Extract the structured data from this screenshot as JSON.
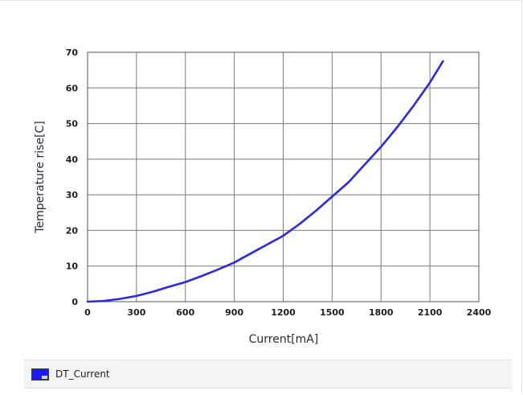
{
  "chart_data": {
    "type": "line",
    "xlabel": "Current[mA]",
    "ylabel": "Temperature rise[C]",
    "xlim": [
      0,
      2400
    ],
    "ylim": [
      0,
      70
    ],
    "x_ticks": [
      0,
      300,
      600,
      900,
      1200,
      1500,
      1800,
      2100,
      2400
    ],
    "y_ticks": [
      0,
      10,
      20,
      30,
      40,
      50,
      60,
      70
    ],
    "grid": true,
    "legend_position": "bottom",
    "series": [
      {
        "name": "DT_Current",
        "color": "#2a2ae6",
        "x": [
          0,
          100,
          200,
          300,
          400,
          500,
          600,
          700,
          800,
          900,
          1000,
          1100,
          1200,
          1300,
          1400,
          1500,
          1600,
          1700,
          1800,
          1900,
          2000,
          2100,
          2180
        ],
        "y": [
          0,
          0.2,
          0.8,
          1.6,
          2.8,
          4.2,
          5.5,
          7.2,
          9.0,
          11.0,
          13.5,
          16.0,
          18.5,
          21.8,
          25.5,
          29.5,
          33.5,
          38.5,
          43.5,
          49.0,
          55.0,
          61.5,
          67.5
        ]
      }
    ]
  },
  "legend": {
    "label": "DT_Current",
    "swatch_color": "#1a1aff"
  }
}
